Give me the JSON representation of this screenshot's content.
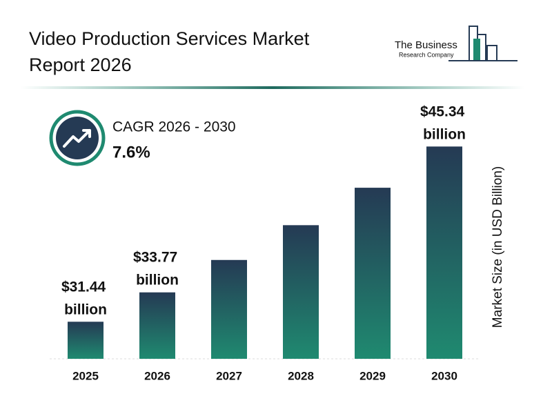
{
  "chart_data": {
    "type": "bar",
    "title": "Video Production Services Market Report 2026",
    "logo": {
      "line1": "The Business",
      "line2": "Research Company"
    },
    "cagr_label": "CAGR 2026 - 2030",
    "cagr_value": "7.6%",
    "y_axis_label": "Market Size (in USD Billion)",
    "categories": [
      "2025",
      "2026",
      "2027",
      "2028",
      "2029",
      "2030"
    ],
    "values": [
      31.44,
      33.77,
      36.34,
      39.1,
      42.07,
      45.34
    ],
    "value_labels": [
      "$31.44 billion",
      "$33.77 billion",
      null,
      null,
      null,
      "$45.34 billion"
    ],
    "color_top": "#253a54",
    "color_bottom": "#1f8a70",
    "ylim": [
      28.5,
      49.3
    ]
  }
}
